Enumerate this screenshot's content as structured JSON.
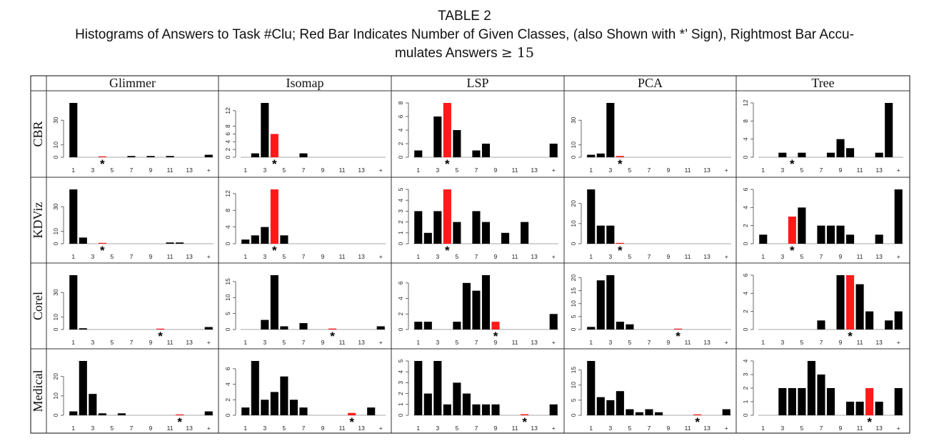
{
  "table": {
    "title": "TABLE 2",
    "caption_line1": "Histograms of Answers to Task #Clu; Red Bar Indicates Number of Given Classes, (also Shown with *’ Sign), Rightmost Bar Accu-",
    "caption_line2_text": "mulates Answers ",
    "caption_line2_math": "≥ 15",
    "columns": [
      "Glimmer",
      "Isomap",
      "LSP",
      "PCA",
      "Tree"
    ],
    "rows": [
      "CBR",
      "KDViz",
      "Corel",
      "Medical"
    ]
  },
  "colors": {
    "normal": "#000000",
    "highlight": "#ff1a1a",
    "axis": "#444444",
    "border": "#333333"
  },
  "chart_data": {
    "type": "bar",
    "categories": [
      "1",
      "2",
      "3",
      "4",
      "5",
      "6",
      "7",
      "8",
      "9",
      "10",
      "11",
      "12",
      "13",
      "14",
      "+"
    ],
    "x_tick_labels": [
      "1",
      "3",
      "5",
      "7",
      "9",
      "11",
      "13",
      "+"
    ],
    "marker": "*",
    "panels": [
      {
        "row": "CBR",
        "column": "Glimmer",
        "values": [
          44,
          0,
          0,
          0.3,
          0,
          0,
          1,
          0,
          1,
          0,
          1,
          0,
          0,
          0,
          2
        ],
        "highlight_index": 3,
        "y_ticks": [
          0,
          10,
          30
        ],
        "ylim": [
          0,
          44
        ]
      },
      {
        "row": "CBR",
        "column": "Isomap",
        "values": [
          0,
          1,
          14,
          6,
          0,
          0,
          1,
          0,
          0,
          0,
          0,
          0,
          0,
          0,
          0
        ],
        "highlight_index": 3,
        "y_ticks": [
          0,
          2,
          4,
          6,
          8,
          12
        ],
        "ylim": [
          0,
          14
        ]
      },
      {
        "row": "CBR",
        "column": "LSP",
        "values": [
          1,
          0,
          6,
          8,
          4,
          0,
          1,
          2,
          0,
          0,
          0,
          0,
          0,
          0,
          2
        ],
        "highlight_index": 3,
        "y_ticks": [
          0,
          2,
          4,
          6,
          8
        ],
        "ylim": [
          0,
          8
        ]
      },
      {
        "row": "CBR",
        "column": "PCA",
        "values": [
          2,
          3,
          44,
          1,
          0,
          0,
          0,
          0,
          0,
          0,
          0,
          0,
          0,
          0,
          0
        ],
        "highlight_index": 3,
        "y_ticks": [
          0,
          10,
          30
        ],
        "ylim": [
          0,
          44
        ]
      },
      {
        "row": "CBR",
        "column": "Tree",
        "values": [
          0,
          0,
          1,
          0,
          1,
          0,
          0,
          1,
          4,
          2,
          0,
          0,
          1,
          12,
          0
        ],
        "highlight_index": 3,
        "y_ticks": [
          0,
          4,
          8,
          12
        ],
        "ylim": [
          0,
          12
        ]
      },
      {
        "row": "KDViz",
        "column": "Glimmer",
        "values": [
          44,
          5,
          0,
          0.3,
          0,
          0,
          0,
          0,
          0,
          0,
          1,
          1,
          0,
          0,
          0
        ],
        "highlight_index": 3,
        "y_ticks": [
          0,
          10,
          30
        ],
        "ylim": [
          0,
          44
        ]
      },
      {
        "row": "KDViz",
        "column": "Isomap",
        "values": [
          1,
          2,
          4,
          13,
          2,
          0,
          0,
          0,
          0,
          0,
          0,
          0,
          0,
          0,
          0
        ],
        "highlight_index": 3,
        "y_ticks": [
          0,
          4,
          8,
          12
        ],
        "ylim": [
          0,
          13
        ]
      },
      {
        "row": "KDViz",
        "column": "LSP",
        "values": [
          3,
          1,
          3,
          5,
          2,
          0,
          3,
          2,
          0,
          1,
          0,
          2,
          0,
          0,
          0
        ],
        "highlight_index": 3,
        "y_ticks": [
          0,
          1,
          2,
          3,
          4,
          5
        ],
        "ylim": [
          0,
          5
        ]
      },
      {
        "row": "KDViz",
        "column": "PCA",
        "values": [
          27,
          9,
          9,
          0.3,
          0,
          0,
          0,
          0,
          0,
          0,
          0,
          0,
          0,
          0,
          0
        ],
        "highlight_index": 3,
        "y_ticks": [
          0,
          10,
          20
        ],
        "ylim": [
          0,
          27
        ]
      },
      {
        "row": "KDViz",
        "column": "Tree",
        "values": [
          1,
          0,
          0,
          3,
          4,
          0,
          2,
          2,
          2,
          1,
          0,
          0,
          1,
          0,
          6
        ],
        "highlight_index": 3,
        "y_ticks": [
          0,
          2,
          4,
          6
        ],
        "ylim": [
          0,
          6
        ]
      },
      {
        "row": "Corel",
        "column": "Glimmer",
        "values": [
          44,
          1,
          0,
          0,
          0,
          0,
          0,
          0,
          0,
          0.3,
          0,
          0,
          0,
          0,
          2
        ],
        "highlight_index": 9,
        "y_ticks": [
          0,
          10,
          30
        ],
        "ylim": [
          0,
          44
        ]
      },
      {
        "row": "Corel",
        "column": "Isomap",
        "values": [
          0,
          0,
          3,
          17,
          1,
          0,
          2,
          0,
          0,
          0.3,
          0,
          0,
          0,
          0,
          1
        ],
        "highlight_index": 9,
        "y_ticks": [
          0,
          5,
          10,
          15
        ],
        "ylim": [
          0,
          17
        ]
      },
      {
        "row": "Corel",
        "column": "LSP",
        "values": [
          1,
          1,
          0,
          0,
          1,
          6,
          5,
          7,
          1,
          0,
          0,
          0,
          0,
          0,
          2
        ],
        "highlight_index": 8,
        "y_ticks": [
          0,
          2,
          4,
          6
        ],
        "ylim": [
          0,
          7
        ]
      },
      {
        "row": "Corel",
        "column": "PCA",
        "values": [
          1,
          19,
          21,
          3,
          2,
          0,
          0,
          0,
          0,
          0.3,
          0,
          0,
          0,
          0,
          0
        ],
        "highlight_index": 9,
        "y_ticks": [
          0,
          5,
          10,
          15,
          20
        ],
        "ylim": [
          0,
          21
        ]
      },
      {
        "row": "Corel",
        "column": "Tree",
        "values": [
          0,
          0,
          0,
          0,
          0,
          0,
          1,
          0,
          6,
          6,
          5,
          2,
          0,
          1,
          2
        ],
        "highlight_index": 9,
        "y_ticks": [
          0,
          2,
          4,
          6
        ],
        "ylim": [
          0,
          6
        ]
      },
      {
        "row": "Medical",
        "column": "Glimmer",
        "values": [
          2,
          28,
          11,
          1,
          0,
          1,
          0,
          0,
          0,
          0,
          0,
          0.3,
          0,
          0,
          2
        ],
        "highlight_index": 11,
        "y_ticks": [
          0,
          10,
          20
        ],
        "ylim": [
          0,
          28
        ]
      },
      {
        "row": "Medical",
        "column": "Isomap",
        "values": [
          1,
          7,
          2,
          3,
          5,
          2,
          1,
          0,
          0,
          0,
          0,
          0.3,
          0,
          1,
          0
        ],
        "highlight_index": 11,
        "y_ticks": [
          0,
          2,
          4,
          6
        ],
        "ylim": [
          0,
          7
        ]
      },
      {
        "row": "Medical",
        "column": "LSP",
        "values": [
          5,
          2,
          5,
          1,
          3,
          2,
          1,
          1,
          1,
          0,
          0,
          0.1,
          0,
          0,
          1
        ],
        "highlight_index": 11,
        "y_ticks": [
          0,
          1,
          2,
          3,
          4,
          5
        ],
        "ylim": [
          0,
          5
        ]
      },
      {
        "row": "Medical",
        "column": "PCA",
        "values": [
          18,
          6,
          5,
          8,
          2,
          1,
          2,
          1,
          0,
          0,
          0,
          0.3,
          0,
          0,
          2
        ],
        "highlight_index": 11,
        "y_ticks": [
          0,
          5,
          10,
          15
        ],
        "ylim": [
          0,
          18
        ]
      },
      {
        "row": "Medical",
        "column": "Tree",
        "values": [
          0,
          0,
          2,
          2,
          2,
          4,
          3,
          2,
          0,
          1,
          1,
          2,
          1,
          0,
          2
        ],
        "highlight_index": 11,
        "y_ticks": [
          0,
          1,
          2,
          3,
          4
        ],
        "ylim": [
          0,
          4
        ]
      }
    ]
  }
}
